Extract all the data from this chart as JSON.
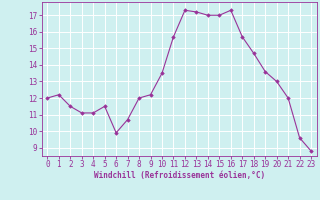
{
  "x": [
    0,
    1,
    2,
    3,
    4,
    5,
    6,
    7,
    8,
    9,
    10,
    11,
    12,
    13,
    14,
    15,
    16,
    17,
    18,
    19,
    20,
    21,
    22,
    23
  ],
  "y": [
    12.0,
    12.2,
    11.5,
    11.1,
    11.1,
    11.5,
    9.9,
    10.7,
    12.0,
    12.2,
    13.5,
    15.7,
    17.3,
    17.2,
    17.0,
    17.0,
    17.3,
    15.7,
    14.7,
    13.6,
    13.0,
    12.0,
    9.6,
    8.8
  ],
  "line_color": "#993399",
  "marker": "D",
  "marker_size": 1.8,
  "linewidth": 0.8,
  "xlabel": "Windchill (Refroidissement éolien,°C)",
  "xlim": [
    -0.5,
    23.5
  ],
  "ylim": [
    8.5,
    17.8
  ],
  "yticks": [
    9,
    10,
    11,
    12,
    13,
    14,
    15,
    16,
    17
  ],
  "xticks": [
    0,
    1,
    2,
    3,
    4,
    5,
    6,
    7,
    8,
    9,
    10,
    11,
    12,
    13,
    14,
    15,
    16,
    17,
    18,
    19,
    20,
    21,
    22,
    23
  ],
  "bg_color": "#cff0f0",
  "grid_color": "#ffffff",
  "tick_color": "#993399",
  "label_color": "#993399",
  "xlabel_fontsize": 5.5,
  "tick_fontsize": 5.5
}
